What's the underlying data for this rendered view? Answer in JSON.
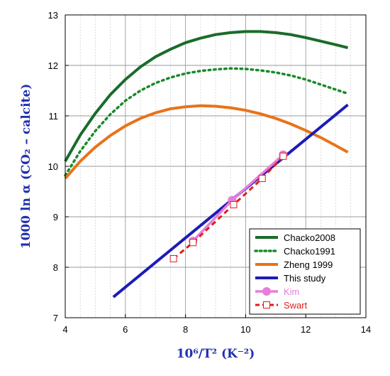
{
  "chart_data": {
    "type": "line",
    "title": "",
    "xlabel": "10⁶/T² (K⁻²)",
    "ylabel": "1000 ln α (CO₂ – calcite)",
    "xlim": [
      4,
      14
    ],
    "ylim": [
      7,
      13
    ],
    "xticks": [
      "4",
      "6",
      "8",
      "10",
      "12",
      "14"
    ],
    "yticks": [
      "7",
      "8",
      "9",
      "10",
      "11",
      "12",
      "13"
    ],
    "grid": "vertical minor lines every 0.5, horizontal major lines",
    "legend_position": "bottom-right",
    "series": [
      {
        "name": "Chacko2008",
        "color": "#1a6b2a",
        "style": "solid",
        "x": [
          4.0,
          4.5,
          5.0,
          5.5,
          6.0,
          6.5,
          7.0,
          7.5,
          8.0,
          8.5,
          9.0,
          9.5,
          10.0,
          10.5,
          11.0,
          11.5,
          12.0,
          12.5,
          13.0,
          13.4
        ],
        "y": [
          10.1,
          10.62,
          11.05,
          11.42,
          11.72,
          11.97,
          12.17,
          12.32,
          12.45,
          12.54,
          12.61,
          12.65,
          12.67,
          12.67,
          12.65,
          12.61,
          12.55,
          12.48,
          12.41,
          12.35
        ]
      },
      {
        "name": "Chacko1991",
        "color": "#1a8a2a",
        "style": "dotted",
        "x": [
          4.0,
          4.5,
          5.0,
          5.5,
          6.0,
          6.5,
          7.0,
          7.5,
          8.0,
          8.5,
          9.0,
          9.5,
          10.0,
          10.5,
          11.0,
          11.5,
          12.0,
          12.5,
          13.0,
          13.4
        ],
        "y": [
          9.82,
          10.3,
          10.7,
          11.03,
          11.3,
          11.5,
          11.65,
          11.76,
          11.84,
          11.89,
          11.92,
          11.94,
          11.93,
          11.9,
          11.86,
          11.8,
          11.72,
          11.62,
          11.52,
          11.44
        ]
      },
      {
        "name": "Zheng 1999",
        "color": "#e8731a",
        "style": "solid",
        "x": [
          4.0,
          4.5,
          5.0,
          5.5,
          6.0,
          6.5,
          7.0,
          7.5,
          8.0,
          8.5,
          9.0,
          9.5,
          10.0,
          10.5,
          11.0,
          11.5,
          12.0,
          12.5,
          13.0,
          13.4
        ],
        "y": [
          9.76,
          10.1,
          10.38,
          10.61,
          10.8,
          10.95,
          11.06,
          11.14,
          11.18,
          11.2,
          11.19,
          11.16,
          11.11,
          11.04,
          10.95,
          10.84,
          10.71,
          10.57,
          10.41,
          10.28
        ]
      },
      {
        "name": "This study",
        "color": "#1c1cb8",
        "style": "solid",
        "x": [
          5.6,
          13.4
        ],
        "y": [
          7.41,
          11.22
        ]
      },
      {
        "name": "Kim",
        "color": "#e67ed8",
        "style": "solid-circles",
        "x": [
          8.25,
          9.55,
          11.25
        ],
        "y": [
          8.52,
          9.33,
          10.23
        ]
      },
      {
        "name": "Swart",
        "color": "#e21b1b",
        "style": "dashed-squares",
        "x": [
          7.6,
          8.25,
          9.6,
          10.55,
          11.25
        ],
        "y": [
          8.17,
          8.49,
          9.24,
          9.76,
          10.2
        ]
      }
    ]
  }
}
